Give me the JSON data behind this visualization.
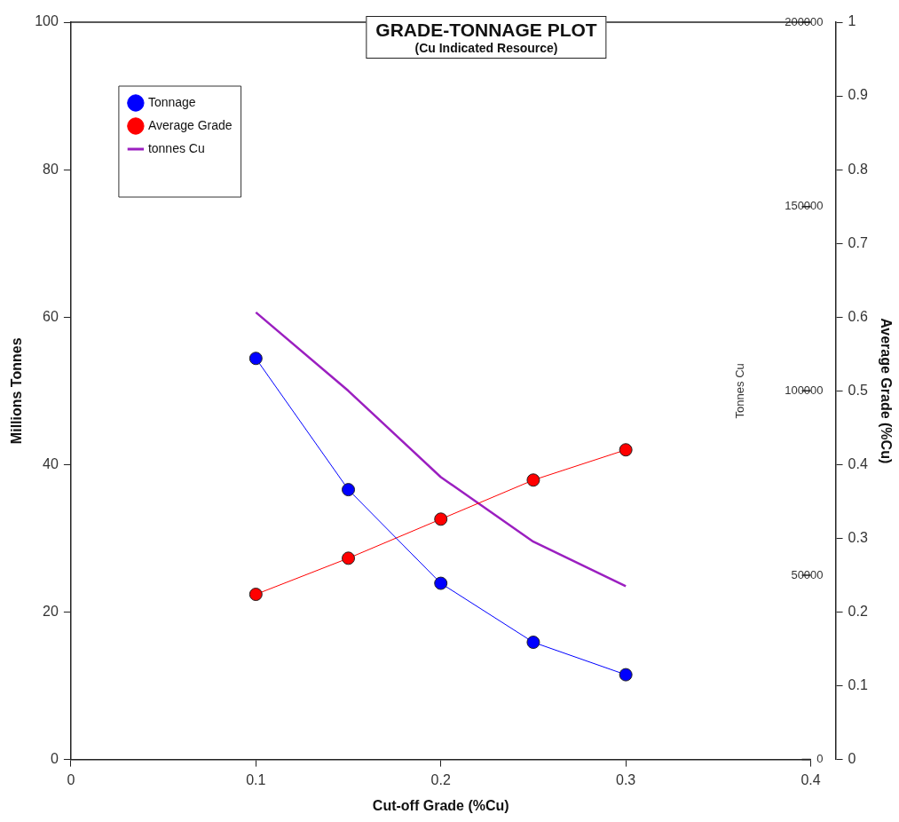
{
  "chart_data": {
    "type": "line",
    "title": "GRADE-TONNAGE PLOT",
    "subtitle": "(Cu Indicated Resource)",
    "xlabel": "Cut-off Grade (%Cu)",
    "ylabel": "Millions Tonnes",
    "y2label": "Average Grade (%Cu)",
    "y3label": "Tonnes Cu",
    "x": [
      0.1,
      0.15,
      0.2,
      0.25,
      0.3
    ],
    "xlim": [
      0,
      0.4
    ],
    "xticks": [
      0,
      0.1,
      0.2,
      0.3,
      0.4
    ],
    "ylim": [
      0,
      100
    ],
    "yticks": [
      0,
      20,
      40,
      60,
      80,
      100
    ],
    "y2lim": [
      0,
      1
    ],
    "y2ticks": [
      0,
      0.1,
      0.2,
      0.3,
      0.4,
      0.5,
      0.6,
      0.7,
      0.8,
      0.9,
      1
    ],
    "y3lim": [
      0,
      200000
    ],
    "y3ticks": [
      0,
      50000,
      100000,
      150000,
      200000
    ],
    "grid": false,
    "legend": "top left",
    "series": [
      {
        "name": "Tonnage",
        "color": "#0000ff",
        "values": [
          54.4,
          36.6,
          23.9,
          15.9,
          11.5
        ],
        "axis": "y",
        "marker": "circle"
      },
      {
        "name": "Average Grade",
        "color": "#ff0000",
        "values": [
          0.224,
          0.273,
          0.326,
          0.379,
          0.42
        ],
        "axis": "y2",
        "marker": "circle"
      },
      {
        "name": "tonnes Cu",
        "color": "#9b1fc0",
        "values": [
          121300,
          100000,
          76600,
          59100,
          47000
        ],
        "axis": "y3",
        "marker": "none"
      }
    ]
  }
}
